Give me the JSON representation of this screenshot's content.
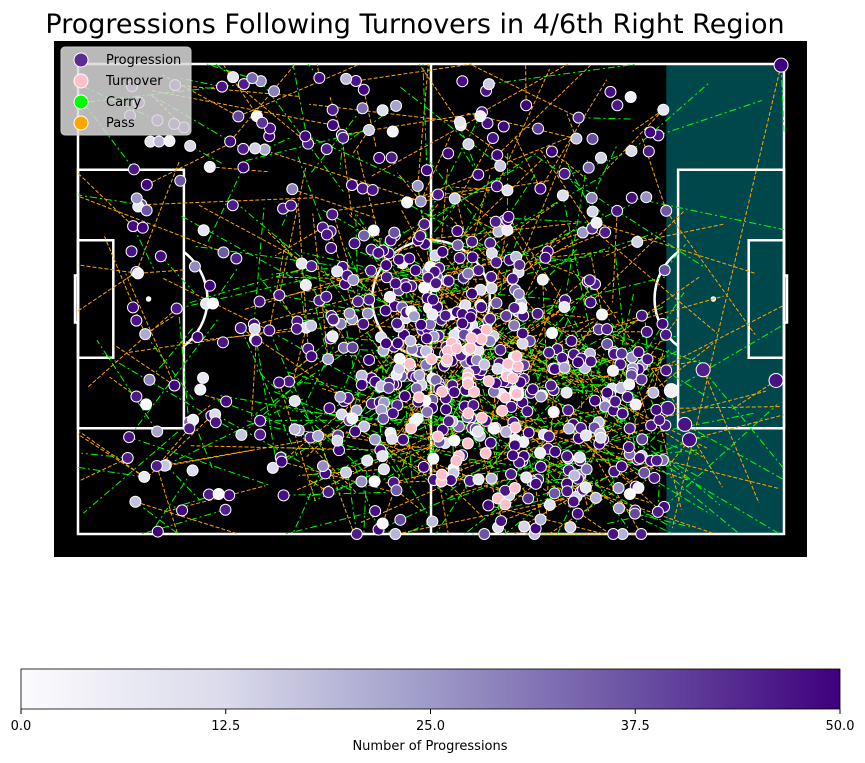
{
  "chart_data": {
    "type": "scatter",
    "title": "Progressions Following Turnovers in 4/6th Right Region",
    "pitch": {
      "background_color": "#000000",
      "line_color": "#ffffff",
      "highlight_region_color": "#00474c",
      "x_range": [
        0,
        120
      ],
      "y_range": [
        0,
        80
      ],
      "highlight_region_x": [
        100,
        120
      ]
    },
    "legend": {
      "placement": "top-left",
      "entries": [
        {
          "label": "Progression",
          "color": "#5a2d91",
          "marker": "circle"
        },
        {
          "label": "Turnover",
          "color": "#ffc0cb",
          "marker": "circle"
        },
        {
          "label": "Carry",
          "color": "#00ff00",
          "marker": "circle"
        },
        {
          "label": "Pass",
          "color": "#ffa500",
          "marker": "circle"
        }
      ]
    },
    "colorbar": {
      "label": "Number of Progressions",
      "min": 0,
      "max": 50,
      "ticks": [
        "0.0",
        "12.5",
        "25.0",
        "37.5",
        "50.0"
      ],
      "colormap": [
        "#fcfbfd",
        "#dadaeb",
        "#9e9ac8",
        "#6a51a3",
        "#3f007d"
      ]
    },
    "link_styles": {
      "carry": {
        "color": "#00ff00",
        "dash": "7,3,2,3"
      },
      "pass": {
        "color": "#ffa500",
        "dash": "4,2"
      }
    },
    "point_count": 700,
    "link_count": 650
  }
}
